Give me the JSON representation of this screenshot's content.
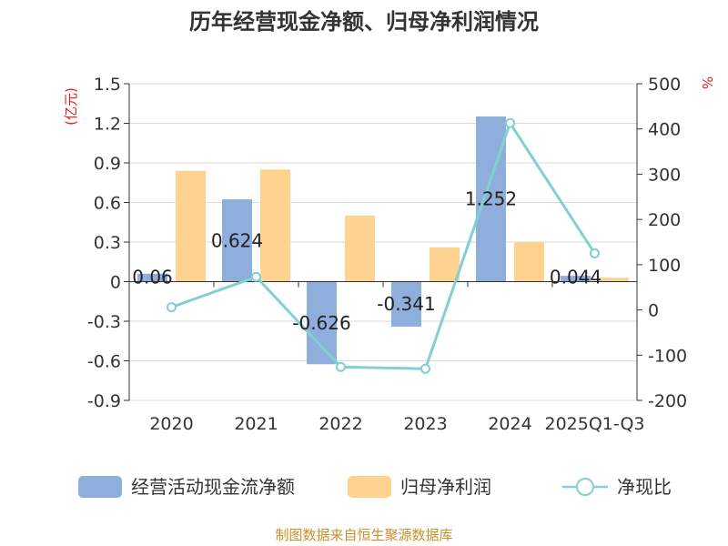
{
  "chart_data": {
    "type": "bar",
    "title": "历年经营现金净额、归母净利润情况",
    "categories": [
      "2020",
      "2021",
      "2022",
      "2023",
      "2024",
      "2025Q1-Q3"
    ],
    "series": [
      {
        "name": "经营活动现金流净额",
        "kind": "bar",
        "axis": "left",
        "color": "#8eaedc",
        "values": [
          0.06,
          0.624,
          -0.626,
          -0.341,
          1.252,
          0.044
        ]
      },
      {
        "name": "归母净利润",
        "kind": "bar",
        "axis": "left",
        "color": "#fdd38f",
        "values": [
          0.84,
          0.85,
          0.5,
          0.26,
          0.3,
          0.03
        ]
      },
      {
        "name": "净现比",
        "kind": "line",
        "axis": "right",
        "color": "#82cfd4",
        "values": [
          6,
          73,
          -126,
          -130,
          413,
          125
        ]
      }
    ],
    "data_labels": [
      {
        "series": 0,
        "index": 0,
        "text": "0.06"
      },
      {
        "series": 0,
        "index": 1,
        "text": "0.624"
      },
      {
        "series": 0,
        "index": 2,
        "text": "-0.626"
      },
      {
        "series": 0,
        "index": 3,
        "text": "-0.341"
      },
      {
        "series": 0,
        "index": 4,
        "text": "1.252"
      },
      {
        "series": 0,
        "index": 5,
        "text": "0.044"
      }
    ],
    "y_left": {
      "unit": "(亿元)",
      "ylim": [
        -0.9,
        1.5
      ],
      "ticks": [
        1.5,
        1.2,
        0.9,
        0.6,
        0.3,
        0,
        -0.3,
        -0.6,
        -0.9
      ],
      "tick_labels": [
        "1.5",
        "1.2",
        "0.9",
        "0.6",
        "0.3",
        "0",
        "-0.3",
        "-0.6",
        "-0.9"
      ]
    },
    "y_right": {
      "unit": "%",
      "ylim": [
        -200,
        500
      ],
      "ticks": [
        500,
        400,
        300,
        200,
        100,
        0,
        -100,
        -200
      ],
      "tick_labels": [
        "500",
        "400",
        "300",
        "200",
        "100",
        "0",
        "-100",
        "-200"
      ]
    },
    "grid": "horizontal",
    "legend_position": "bottom",
    "source": "制图数据来自恒生聚源数据库"
  }
}
